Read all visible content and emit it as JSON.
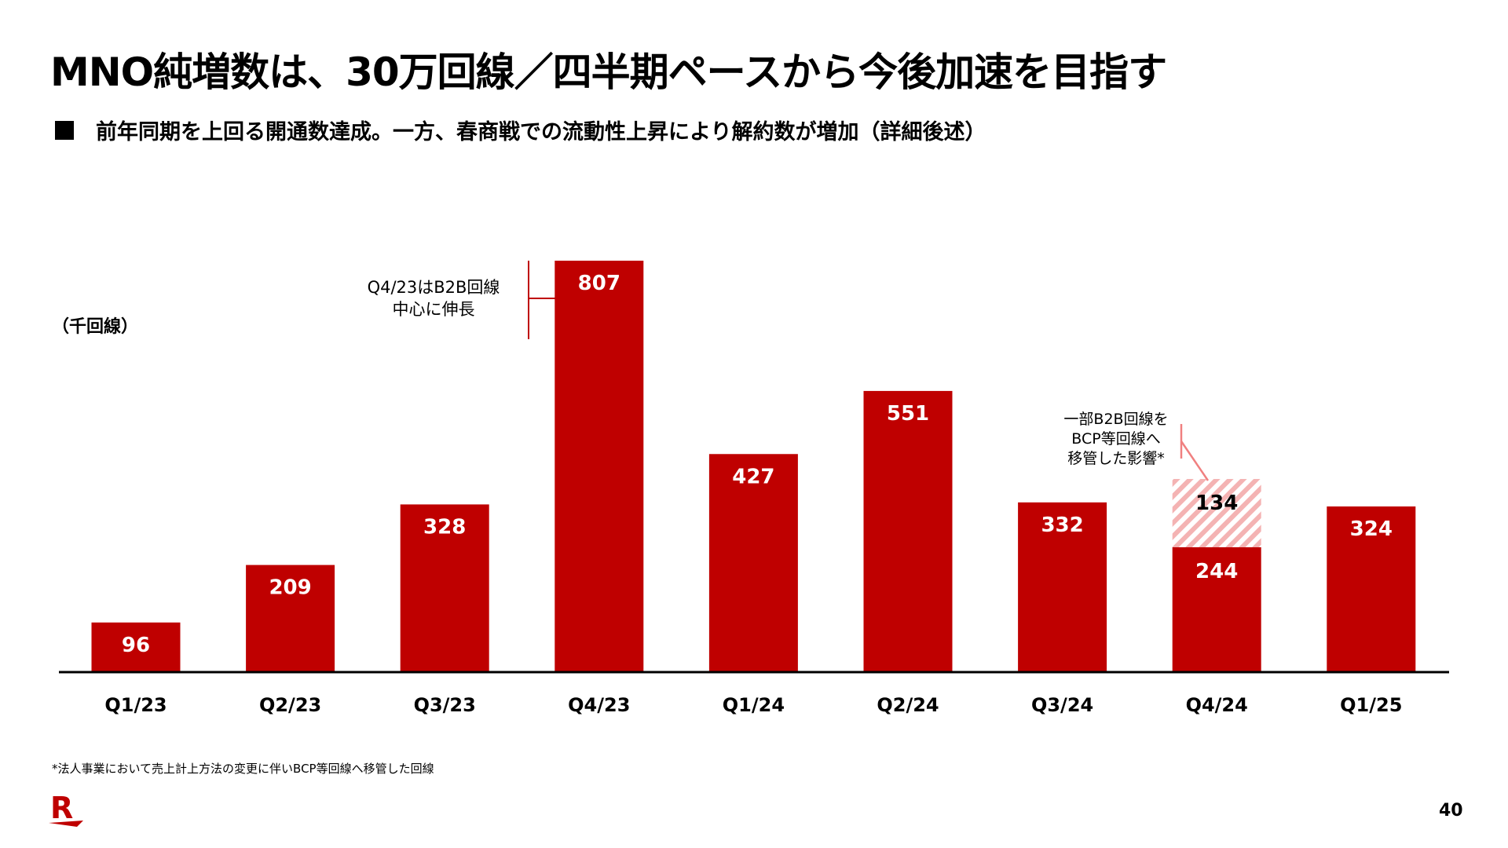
{
  "header": {
    "title": "MNO純増数は、30万回線／四半期ペースから今後加速を目指す",
    "subtitle": "前年同期を上回る開通数達成。一方、春商戦での流動性上昇により解約数が増加（詳細後述）"
  },
  "chart_data": {
    "type": "bar",
    "stacked": true,
    "ylabel": "（千回線）",
    "categories": [
      "Q1/23",
      "Q2/23",
      "Q3/23",
      "Q4/23",
      "Q1/24",
      "Q2/24",
      "Q3/24",
      "Q4/24",
      "Q1/25"
    ],
    "series": [
      {
        "name": "MNO純増数",
        "values": [
          96,
          209,
          328,
          807,
          427,
          551,
          332,
          244,
          324
        ],
        "color": "#bf0000"
      },
      {
        "name": "一部B2B回線をBCP等回線へ移管した影響",
        "values": [
          0,
          0,
          0,
          0,
          0,
          0,
          0,
          134,
          0
        ],
        "color": "#f4b3b3",
        "pattern": "hatched"
      }
    ],
    "ylim": [
      0,
      830
    ],
    "grid": false,
    "annotations": [
      {
        "category": "Q4/23",
        "lines": [
          "Q4/23はB2B回線",
          "中心に伸長"
        ]
      },
      {
        "category": "Q4/24",
        "lines": [
          "一部B2B回線を",
          "BCP等回線へ",
          "移管した影響*"
        ]
      }
    ]
  },
  "footnote": "*法人事業において売上計上方法の変更に伴いBCP等回線へ移管した回線",
  "page_number": "40",
  "logo_text": "R"
}
